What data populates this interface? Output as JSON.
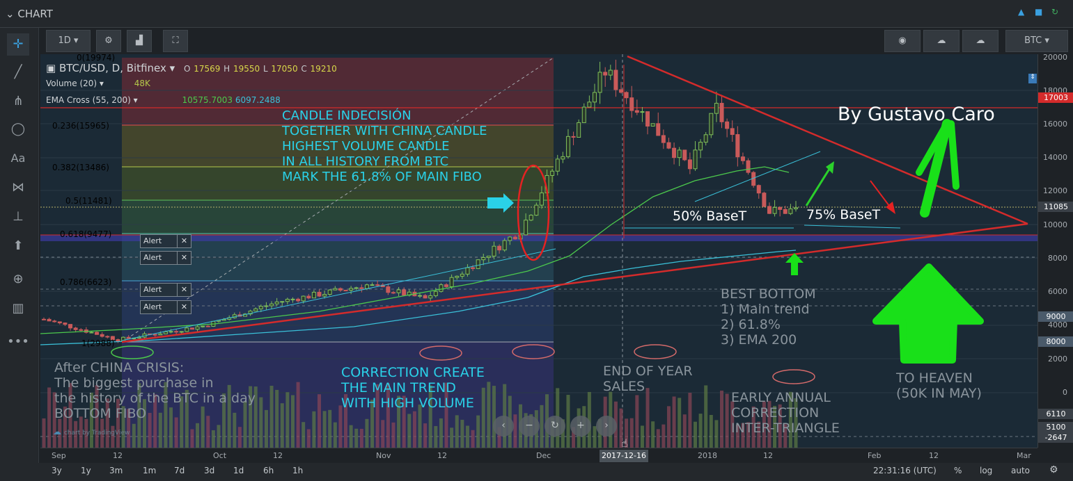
{
  "window": {
    "title": "CHART"
  },
  "toolbar": {
    "interval": "1D",
    "symbol_select": "BTC"
  },
  "legend": {
    "symbol": "BTC/USD, D, Bitfinex",
    "o_label": "O",
    "o_value": "17569",
    "h_label": "H",
    "h_value": "19550",
    "l_label": "L",
    "l_value": "17050",
    "c_label": "C",
    "c_value": "19210",
    "volume_label": "Volume (20)",
    "volume_value": "48K",
    "ema_label": "EMA Cross (55, 200)",
    "ema_value1": "10575.7003",
    "ema_value2": "6097.2488"
  },
  "fib_levels": [
    {
      "label": "0(19974)",
      "color": "#a7acb1"
    },
    {
      "label": "0.236(15965)",
      "color": "#e04d4d"
    },
    {
      "label": "0.382(13486)",
      "color": "#b5c94a"
    },
    {
      "label": "0.5(11481)",
      "color": "#5cc45c"
    },
    {
      "label": "0.618(9477)",
      "color": "#5cc4a3"
    },
    {
      "label": "0.786(6623)",
      "color": "#47a6d9"
    },
    {
      "label": "1(2988)",
      "color": "#a7acb1"
    }
  ],
  "alerts": [
    {
      "label": "Alert",
      "close": "✕"
    },
    {
      "label": "Alert",
      "close": "✕"
    },
    {
      "label": "Alert",
      "close": "✕"
    },
    {
      "label": "Alert",
      "close": "✕"
    }
  ],
  "annotations": {
    "candle_text": [
      "CANDLE INDECISIÓN",
      "TOGETHER WITH CHINA CANDLE",
      "HIGHEST VOLUME CANDLE",
      "IN ALL HISTORY FROM BTC",
      "MARK THE 61.8% OF MAIN FIBO"
    ],
    "author": "By Gustavo Caro",
    "base50": "50% BaseT",
    "base75": "75% BaseT",
    "best_bottom": [
      "BEST BOTTOM",
      "1) Main trend",
      "2) 61.8%",
      "3) EMA 200"
    ],
    "after_china": [
      "After CHINA CRISIS:",
      "The biggest purchase in",
      "the history of the BTC in a day",
      "BOTTOM FIBO"
    ],
    "correction": [
      "CORRECTION CREATE",
      "THE MAIN TREND",
      "WITH HIGH VOLUME"
    ],
    "end_of_year": [
      "END OF YEAR",
      "SALES"
    ],
    "early_annual": [
      "EARLY ANNUAL",
      "CORRECTION",
      "INTER-TRIANGLE"
    ],
    "to_heaven": [
      "TO HEAVEN",
      "(50K IN MAY)"
    ],
    "watermark": "chart by TradingView"
  },
  "yaxis": {
    "labels": [
      "20000",
      "18000",
      "16000",
      "14000",
      "12000",
      "10000",
      "8000",
      "6000",
      "4000",
      "2000",
      "0"
    ],
    "tags": [
      {
        "text": "17003",
        "color": "#d42b2b"
      },
      {
        "text": "11085",
        "color": "#3a4047"
      },
      {
        "text": "9000",
        "color": "#4a5a6a"
      },
      {
        "text": "8000",
        "color": "#4a5a6a"
      },
      {
        "text": "6110",
        "color": "#3a4047"
      },
      {
        "text": "5100",
        "color": "#3a4047"
      },
      {
        "text": "-2647",
        "color": "#3a4047"
      }
    ]
  },
  "xaxis": {
    "labels": [
      "Sep",
      "12",
      "Oct",
      "12",
      "Nov",
      "12",
      "Dec",
      "2018",
      "12",
      "Feb",
      "12",
      "Mar"
    ],
    "crosshair_date": "2017-12-16"
  },
  "bottom_bar": {
    "ranges": [
      "3y",
      "1y",
      "3m",
      "1m",
      "7d",
      "3d",
      "1d",
      "6h",
      "1h"
    ],
    "time": "22:31:16 (UTC)",
    "percent": "%",
    "log": "log",
    "auto": "auto"
  },
  "chart_data": {
    "type": "candlestick",
    "symbol": "BTC/USD",
    "interval": "D",
    "ylim": [
      -2647,
      20000
    ],
    "close_approx": [
      [
        "2017-09-01",
        4700
      ],
      [
        "2017-09-15",
        3500
      ],
      [
        "2017-10-01",
        4300
      ],
      [
        "2017-10-15",
        5700
      ],
      [
        "2017-11-01",
        6700
      ],
      [
        "2017-11-12",
        5900
      ],
      [
        "2017-11-30",
        9900
      ],
      [
        "2017-12-16",
        19210
      ],
      [
        "2018-01-01",
        13500
      ],
      [
        "2018-01-06",
        17000
      ],
      [
        "2018-01-16",
        11000
      ],
      [
        "2018-01-21",
        11085
      ]
    ],
    "horizontal_levels": [
      17003,
      11085,
      9000,
      8000
    ],
    "fib_retracement": {
      "high": 19974,
      "low": 2988
    }
  }
}
